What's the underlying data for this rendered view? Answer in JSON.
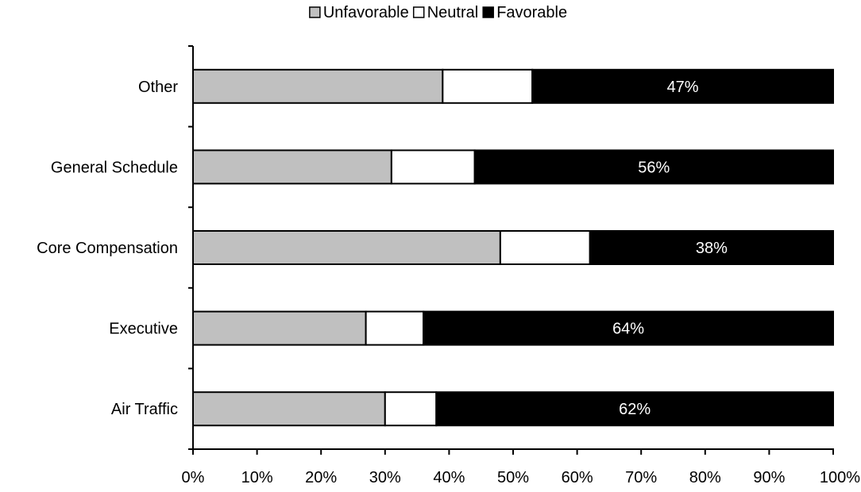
{
  "chart_data": {
    "type": "bar",
    "orientation": "horizontal",
    "stacked": true,
    "title": "",
    "xlabel": "",
    "ylabel": "",
    "categories": [
      "Other",
      "General Schedule",
      "Core Compensation",
      "Executive",
      "Air Traffic"
    ],
    "series": [
      {
        "name": "Unfavorable",
        "values": [
          39,
          31,
          48,
          27,
          30
        ],
        "color": "#c0c0c0"
      },
      {
        "name": "Neutral",
        "values": [
          14,
          13,
          14,
          9,
          8
        ],
        "color": "#ffffff"
      },
      {
        "name": "Favorable",
        "values": [
          47,
          56,
          38,
          64,
          62
        ],
        "color": "#000000"
      }
    ],
    "data_labels": {
      "series": "Favorable",
      "values": [
        "47%",
        "56%",
        "38%",
        "64%",
        "62%"
      ]
    },
    "xlim": [
      0,
      100
    ],
    "x_ticks": [
      0,
      10,
      20,
      30,
      40,
      50,
      60,
      70,
      80,
      90,
      100
    ],
    "x_tick_labels": [
      "0%",
      "10%",
      "20%",
      "30%",
      "40%",
      "50%",
      "60%",
      "70%",
      "80%",
      "90%",
      "100%"
    ],
    "grid": false,
    "legend": {
      "position": "top",
      "entries": [
        "Unfavorable",
        "Neutral",
        "Favorable"
      ]
    }
  }
}
